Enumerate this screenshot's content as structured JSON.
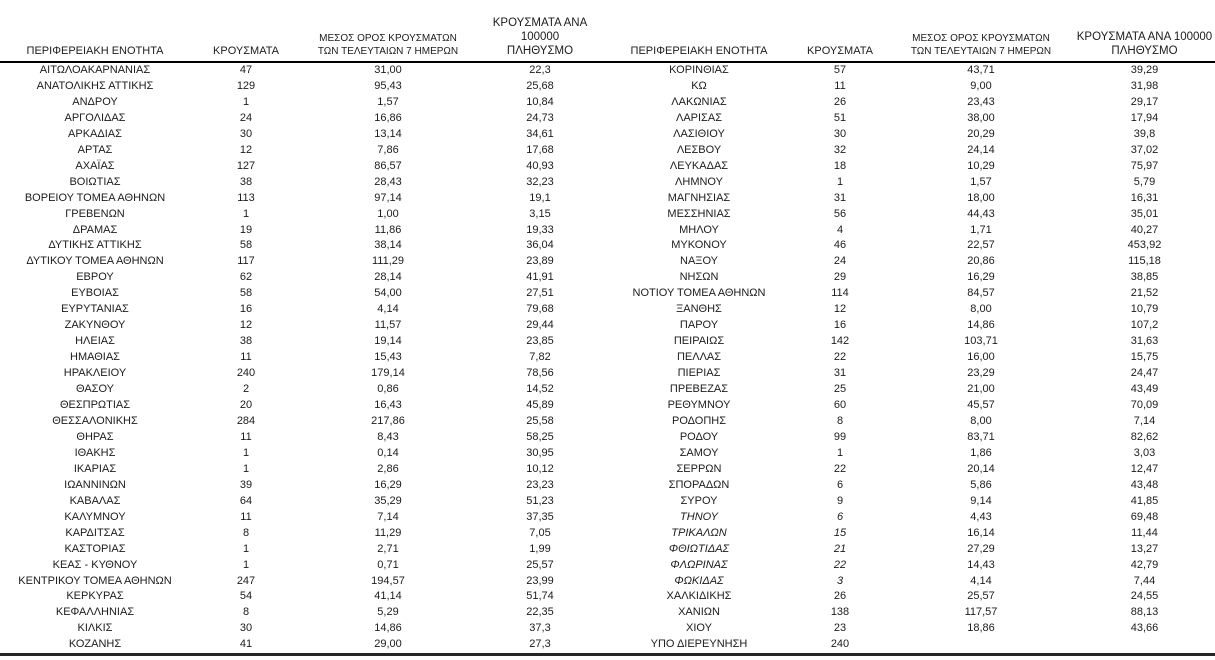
{
  "headers": {
    "region": "ΠΕΡΙΦΕΡΕΙΑΚΗ ΕΝΟΤΗΤΑ",
    "cases": "ΚΡΟΥΣΜΑΤΑ",
    "avg7": "ΜΕΣΟΣ ΟΡΟΣ ΚΡΟΥΣΜΑΤΩΝ\nΤΩΝ ΤΕΛΕΥΤΑΙΩΝ 7 ΗΜΕΡΩΝ",
    "per100k": "ΚΡΟΥΣΜΑΤΑ ΑΝΑ 100000\nΠΛΗΘΥΣΜΟ"
  },
  "left_table": {
    "rows": [
      [
        "ΑΙΤΩΛΟΑΚΑΡΝΑΝΙΑΣ",
        "47",
        "31,00",
        "22,3"
      ],
      [
        "ΑΝΑΤΟΛΙΚΗΣ ΑΤΤΙΚΗΣ",
        "129",
        "95,43",
        "25,68"
      ],
      [
        "ΑΝΔΡΟΥ",
        "1",
        "1,57",
        "10,84"
      ],
      [
        "ΑΡΓΟΛΙΔΑΣ",
        "24",
        "16,86",
        "24,73"
      ],
      [
        "ΑΡΚΑΔΙΑΣ",
        "30",
        "13,14",
        "34,61"
      ],
      [
        "ΑΡΤΑΣ",
        "12",
        "7,86",
        "17,68"
      ],
      [
        "ΑΧΑΪΑΣ",
        "127",
        "86,57",
        "40,93"
      ],
      [
        "ΒΟΙΩΤΙΑΣ",
        "38",
        "28,43",
        "32,23"
      ],
      [
        "ΒΟΡΕΙΟΥ ΤΟΜΕΑ ΑΘΗΝΩΝ",
        "113",
        "97,14",
        "19,1"
      ],
      [
        "ΓΡΕΒΕΝΩΝ",
        "1",
        "1,00",
        "3,15"
      ],
      [
        "ΔΡΑΜΑΣ",
        "19",
        "11,86",
        "19,33"
      ],
      [
        "ΔΥΤΙΚΗΣ ΑΤΤΙΚΗΣ",
        "58",
        "38,14",
        "36,04"
      ],
      [
        "ΔΥΤΙΚΟΥ ΤΟΜΕΑ ΑΘΗΝΩΝ",
        "117",
        "111,29",
        "23,89"
      ],
      [
        "ΕΒΡΟΥ",
        "62",
        "28,14",
        "41,91"
      ],
      [
        "ΕΥΒΟΙΑΣ",
        "58",
        "54,00",
        "27,51"
      ],
      [
        "ΕΥΡΥΤΑΝΙΑΣ",
        "16",
        "4,14",
        "79,68"
      ],
      [
        "ΖΑΚΥΝΘΟΥ",
        "12",
        "11,57",
        "29,44"
      ],
      [
        "ΗΛΕΙΑΣ",
        "38",
        "19,14",
        "23,85"
      ],
      [
        "ΗΜΑΘΙΑΣ",
        "11",
        "15,43",
        "7,82"
      ],
      [
        "ΗΡΑΚΛΕΙΟΥ",
        "240",
        "179,14",
        "78,56"
      ],
      [
        "ΘΑΣΟΥ",
        "2",
        "0,86",
        "14,52"
      ],
      [
        "ΘΕΣΠΡΩΤΙΑΣ",
        "20",
        "16,43",
        "45,89"
      ],
      [
        "ΘΕΣΣΑΛΟΝΙΚΗΣ",
        "284",
        "217,86",
        "25,58"
      ],
      [
        "ΘΗΡΑΣ",
        "11",
        "8,43",
        "58,25"
      ],
      [
        "ΙΘΑΚΗΣ",
        "1",
        "0,14",
        "30,95"
      ],
      [
        "ΙΚΑΡΙΑΣ",
        "1",
        "2,86",
        "10,12"
      ],
      [
        "ΙΩΑΝΝΙΝΩΝ",
        "39",
        "16,29",
        "23,23"
      ],
      [
        "ΚΑΒΑΛΑΣ",
        "64",
        "35,29",
        "51,23"
      ],
      [
        "ΚΑΛΥΜΝΟΥ",
        "11",
        "7,14",
        "37,35"
      ],
      [
        "ΚΑΡΔΙΤΣΑΣ",
        "8",
        "11,29",
        "7,05"
      ],
      [
        "ΚΑΣΤΟΡΙΑΣ",
        "1",
        "2,71",
        "1,99"
      ],
      [
        "ΚΕΑΣ - ΚΥΘΝΟΥ",
        "1",
        "0,71",
        "25,57"
      ],
      [
        "ΚΕΝΤΡΙΚΟΥ ΤΟΜΕΑ ΑΘΗΝΩΝ",
        "247",
        "194,57",
        "23,99"
      ],
      [
        "ΚΕΡΚΥΡΑΣ",
        "54",
        "41,14",
        "51,74"
      ],
      [
        "ΚΕΦΑΛΛΗΝΙΑΣ",
        "8",
        "5,29",
        "22,35"
      ],
      [
        "ΚΙΛΚΙΣ",
        "30",
        "14,86",
        "37,3"
      ],
      [
        "ΚΟΖΑΝΗΣ",
        "41",
        "29,00",
        "27,3"
      ]
    ],
    "italic_row_indices": []
  },
  "right_table": {
    "rows": [
      [
        "ΚΟΡΙΝΘΙΑΣ",
        "57",
        "43,71",
        "39,29"
      ],
      [
        "ΚΩ",
        "11",
        "9,00",
        "31,98"
      ],
      [
        "ΛΑΚΩΝΙΑΣ",
        "26",
        "23,43",
        "29,17"
      ],
      [
        "ΛΑΡΙΣΑΣ",
        "51",
        "38,00",
        "17,94"
      ],
      [
        "ΛΑΣΙΘΙΟΥ",
        "30",
        "20,29",
        "39,8"
      ],
      [
        "ΛΕΣΒΟΥ",
        "32",
        "24,14",
        "37,02"
      ],
      [
        "ΛΕΥΚΑΔΑΣ",
        "18",
        "10,29",
        "75,97"
      ],
      [
        "ΛΗΜΝΟΥ",
        "1",
        "1,57",
        "5,79"
      ],
      [
        "ΜΑΓΝΗΣΙΑΣ",
        "31",
        "18,00",
        "16,31"
      ],
      [
        "ΜΕΣΣΗΝΙΑΣ",
        "56",
        "44,43",
        "35,01"
      ],
      [
        "ΜΗΛΟΥ",
        "4",
        "1,71",
        "40,27"
      ],
      [
        "ΜΥΚΟΝΟΥ",
        "46",
        "22,57",
        "453,92"
      ],
      [
        "ΝΑΞΟΥ",
        "24",
        "20,86",
        "115,18"
      ],
      [
        "ΝΗΣΩΝ",
        "29",
        "16,29",
        "38,85"
      ],
      [
        "ΝΟΤΙΟΥ ΤΟΜΕΑ ΑΘΗΝΩΝ",
        "114",
        "84,57",
        "21,52"
      ],
      [
        "ΞΑΝΘΗΣ",
        "12",
        "8,00",
        "10,79"
      ],
      [
        "ΠΑΡΟΥ",
        "16",
        "14,86",
        "107,2"
      ],
      [
        "ΠΕΙΡΑΙΩΣ",
        "142",
        "103,71",
        "31,63"
      ],
      [
        "ΠΕΛΛΑΣ",
        "22",
        "16,00",
        "15,75"
      ],
      [
        "ΠΙΕΡΙΑΣ",
        "31",
        "23,29",
        "24,47"
      ],
      [
        "ΠΡΕΒΕΖΑΣ",
        "25",
        "21,00",
        "43,49"
      ],
      [
        "ΡΕΘΥΜΝΟΥ",
        "60",
        "45,57",
        "70,09"
      ],
      [
        "ΡΟΔΟΠΗΣ",
        "8",
        "8,00",
        "7,14"
      ],
      [
        "ΡΟΔΟΥ",
        "99",
        "83,71",
        "82,62"
      ],
      [
        "ΣΑΜΟΥ",
        "1",
        "1,86",
        "3,03"
      ],
      [
        "ΣΕΡΡΩΝ",
        "22",
        "20,14",
        "12,47"
      ],
      [
        "ΣΠΟΡΑΔΩΝ",
        "6",
        "5,86",
        "43,48"
      ],
      [
        "ΣΥΡΟΥ",
        "9",
        "9,14",
        "41,85"
      ],
      [
        "ΤΗΝΟΥ",
        "6",
        "4,43",
        "69,48"
      ],
      [
        "ΤΡΙΚΑΛΩΝ",
        "15",
        "16,14",
        "11,44"
      ],
      [
        "ΦΘΙΩΤΙΔΑΣ",
        "21",
        "27,29",
        "13,27"
      ],
      [
        "ΦΛΩΡΙΝΑΣ",
        "22",
        "14,43",
        "42,79"
      ],
      [
        "ΦΩΚΙΔΑΣ",
        "3",
        "4,14",
        "7,44"
      ],
      [
        "ΧΑΛΚΙΔΙΚΗΣ",
        "26",
        "25,57",
        "24,55"
      ],
      [
        "ΧΑΝΙΩΝ",
        "138",
        "117,57",
        "88,13"
      ],
      [
        "ΧΙΟΥ",
        "23",
        "18,86",
        "43,66"
      ],
      [
        "ΥΠΟ ΔΙΕΡΕΥΝΗΣΗ",
        "240",
        "",
        ""
      ]
    ],
    "italic_row_indices": [
      28,
      29,
      30,
      31,
      32
    ]
  },
  "style": {
    "text_color": "#1c1c1c",
    "header_rule_color": "#000000",
    "bottom_rule_color": "#262626",
    "background_color": "#ffffff"
  }
}
